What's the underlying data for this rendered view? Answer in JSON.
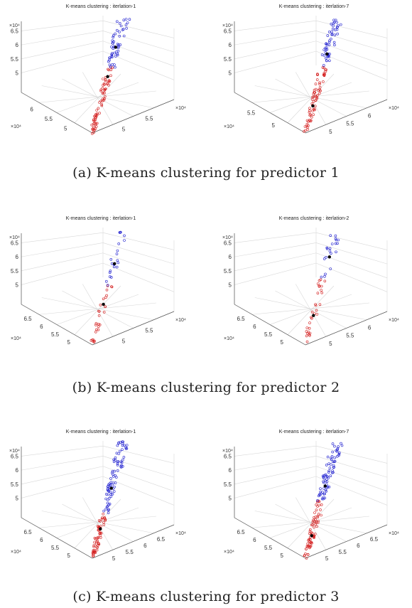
{
  "captions": [
    "(a) K-means clustering for predictor 1",
    "(b) K-means clustering for predictor 2",
    "(c) K-means clustering for predictor 3"
  ],
  "colors": {
    "cluster_1": "#d42020",
    "cluster_2": "#1e1ecf",
    "centroid": "#000000"
  },
  "chart_data": [
    {
      "type": "scatter",
      "predictor": 1,
      "title": "K-means clustering : iterlation-1",
      "axis_exponent_label": "×10⁴",
      "z_ticks": [
        "5",
        "5.5",
        "6",
        "6.5"
      ],
      "x_ticks": [
        "5",
        "5.5"
      ],
      "y_ticks": [
        "5",
        "5.5",
        "6"
      ],
      "series": [
        {
          "color": "cluster_1",
          "z_range": [
            4.3,
            5.75
          ],
          "count": 70
        },
        {
          "color": "cluster_2",
          "z_range": [
            5.75,
            6.85
          ],
          "count": 50
        }
      ],
      "centroids": [
        {
          "z": 5.55
        },
        {
          "z": 6.2
        }
      ]
    },
    {
      "type": "scatter",
      "predictor": 1,
      "title": "K-means clustering : iterlation-7",
      "axis_exponent_label": "×10⁴",
      "z_ticks": [
        "5",
        "5.5",
        "6",
        "6.5"
      ],
      "x_ticks": [
        "5",
        "5.5",
        "6"
      ],
      "y_ticks": [
        "5",
        "5.5"
      ],
      "series": [
        {
          "color": "cluster_1",
          "z_range": [
            4.3,
            5.75
          ],
          "count": 70
        },
        {
          "color": "cluster_2",
          "z_range": [
            5.75,
            6.85
          ],
          "count": 50
        }
      ],
      "centroids": [
        {
          "z": 4.9
        },
        {
          "z": 6.05
        }
      ]
    },
    {
      "type": "scatter",
      "predictor": 2,
      "title": "K-means clustering : iterlation-1",
      "axis_exponent_label": "×10⁴",
      "z_ticks": [
        "5",
        "5.5",
        "6",
        "6.5"
      ],
      "x_ticks": [
        "5",
        "5.5"
      ],
      "y_ticks": [
        "5",
        "5.5",
        "6",
        "6.5"
      ],
      "series": [
        {
          "color": "cluster_1",
          "z_range": [
            4.3,
            5.6
          ],
          "count": 28
        },
        {
          "color": "cluster_2",
          "z_range": [
            5.6,
            6.85
          ],
          "count": 22
        }
      ],
      "centroids": [
        {
          "z": 5.2
        },
        {
          "z": 6.1
        }
      ]
    },
    {
      "type": "scatter",
      "predictor": 2,
      "title": "K-means clustering : iterlation-2",
      "axis_exponent_label": "×10⁴",
      "z_ticks": [
        "5",
        "5.5",
        "6",
        "6.5"
      ],
      "x_ticks": [
        "5",
        "5.5",
        "6"
      ],
      "y_ticks": [
        "5",
        "5.5",
        "6",
        "6.5"
      ],
      "series": [
        {
          "color": "cluster_1",
          "z_range": [
            4.3,
            5.8
          ],
          "count": 30
        },
        {
          "color": "cluster_2",
          "z_range": [
            5.8,
            6.85
          ],
          "count": 20
        }
      ],
      "centroids": [
        {
          "z": 4.95
        },
        {
          "z": 6.25
        }
      ]
    },
    {
      "type": "scatter",
      "predictor": 3,
      "title": "K-means clustering : iterlation-1",
      "axis_exponent_label": "×10⁴",
      "z_ticks": [
        "5",
        "5.5",
        "6",
        "6.5"
      ],
      "x_ticks": [
        "5",
        "5.5",
        "6",
        "6.5"
      ],
      "y_ticks": [
        "5",
        "5.5",
        "6",
        "6.5"
      ],
      "series": [
        {
          "color": "cluster_1",
          "z_range": [
            4.3,
            5.3
          ],
          "count": 60
        },
        {
          "color": "cluster_2",
          "z_range": [
            5.3,
            6.9
          ],
          "count": 80
        }
      ],
      "centroids": [
        {
          "z": 4.95
        },
        {
          "z": 5.85
        }
      ]
    },
    {
      "type": "scatter",
      "predictor": 3,
      "title": "K-means clustering : iterlation-7",
      "axis_exponent_label": "×10⁴",
      "z_ticks": [
        "5",
        "5.5",
        "6",
        "6.5"
      ],
      "x_ticks": [
        "5",
        "5.5",
        "6",
        "6.5"
      ],
      "y_ticks": [
        "5",
        "5.5",
        "6",
        "6.5"
      ],
      "series": [
        {
          "color": "cluster_1",
          "z_range": [
            4.3,
            5.6
          ],
          "count": 70
        },
        {
          "color": "cluster_2",
          "z_range": [
            5.6,
            6.9
          ],
          "count": 70
        }
      ],
      "centroids": [
        {
          "z": 4.8
        },
        {
          "z": 5.9
        }
      ]
    }
  ]
}
